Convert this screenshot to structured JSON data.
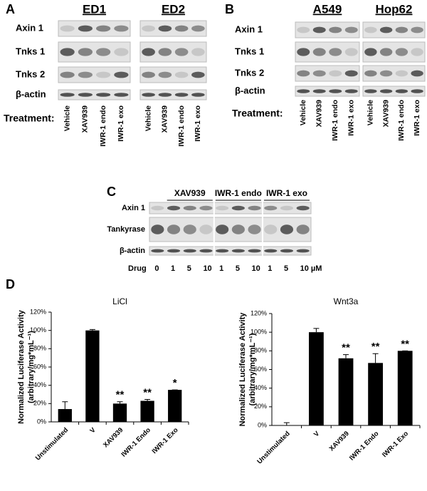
{
  "blots": [
    {
      "label": "A",
      "groups": [
        {
          "name": "ED1",
          "lanes": [
            "Vehicle",
            "XAV939",
            "IWR-1 endo",
            "IWR-1 exo"
          ]
        },
        {
          "name": "ED2",
          "lanes": [
            "Vehicle",
            "XAV939",
            "IWR-1 endo",
            "IWR-1 exo"
          ]
        }
      ],
      "rows": [
        "Axin 1",
        "Tnks 1",
        "Tnks 2",
        "β-actin"
      ],
      "treatment_label": "Treatment:"
    },
    {
      "label": "B",
      "groups": [
        {
          "name": "A549",
          "lanes": [
            "Vehicle",
            "XAV939",
            "IWR-1 endo",
            "IWR-1 exo"
          ]
        },
        {
          "name": "Hop62",
          "lanes": [
            "Vehicle",
            "XAV939",
            "IWR-1 endo",
            "IWR-1 exo"
          ]
        }
      ],
      "rows": [
        "Axin 1",
        "Tnks 1",
        "Tnks 2",
        "β-actin"
      ],
      "treatment_label": "Treatment:"
    },
    {
      "label": "C",
      "groups": [
        {
          "name": "XAV939"
        },
        {
          "name": "IWR-1 endo"
        },
        {
          "name": "IWR-1 exo"
        }
      ],
      "rows": [
        "Axin 1",
        "Tankyrase",
        "β-actin"
      ],
      "treatment_label": "Drug",
      "lanes": [
        "0",
        "1",
        "5",
        "10",
        "1",
        "5",
        "10",
        "1",
        "5",
        "10 µM"
      ]
    }
  ],
  "panel_label": "D",
  "chart_data": [
    {
      "type": "bar",
      "title": "LiCl",
      "y_label": [
        "Normalized Luciferase Activity",
        "(arbitrary/mg*mL⁻¹)"
      ],
      "categories": [
        "Unstimulated",
        "V",
        "XAV939",
        "IWR-1 Endo",
        "IWR-1 Exo"
      ],
      "values": [
        14,
        100,
        20,
        23,
        35
      ],
      "errors": [
        8,
        1,
        2,
        1.5,
        0
      ],
      "annotations": [
        null,
        null,
        "**",
        "**",
        "*"
      ],
      "color": "#000000",
      "ylim": [
        0,
        120
      ],
      "yticks": [
        {
          "value": 0,
          "label": "0%"
        },
        {
          "value": 20,
          "label": "20%"
        },
        {
          "value": 40,
          "label": "40%"
        },
        {
          "value": 60,
          "label": "60%"
        },
        {
          "value": 80,
          "label": "80%"
        },
        {
          "value": 100,
          "label": "100%"
        },
        {
          "value": 120,
          "label": "120%"
        }
      ]
    },
    {
      "type": "bar",
      "title": "Wnt3a",
      "y_label": [
        "Normalized Luciferase Activity",
        "(arbitrary/mg*mL⁻¹)"
      ],
      "categories": [
        "Unstimulated",
        "V",
        "XAV939",
        "IWR-1 Endo",
        "IWR-1 Exo"
      ],
      "values": [
        0,
        100,
        72,
        67,
        80
      ],
      "errors": [
        3,
        4,
        4,
        10,
        0
      ],
      "annotations": [
        null,
        null,
        "**",
        "**",
        "**"
      ],
      "color": "#000000",
      "ylim": [
        0,
        120
      ],
      "yticks": [
        {
          "value": 0,
          "label": "0%"
        },
        {
          "value": 20,
          "label": "20%"
        },
        {
          "value": 40,
          "label": "40%"
        },
        {
          "value": 60,
          "label": "60%"
        },
        {
          "value": 80,
          "label": "80%"
        },
        {
          "value": 100,
          "label": "100%"
        },
        {
          "value": 120,
          "label": "120%"
        }
      ]
    }
  ]
}
